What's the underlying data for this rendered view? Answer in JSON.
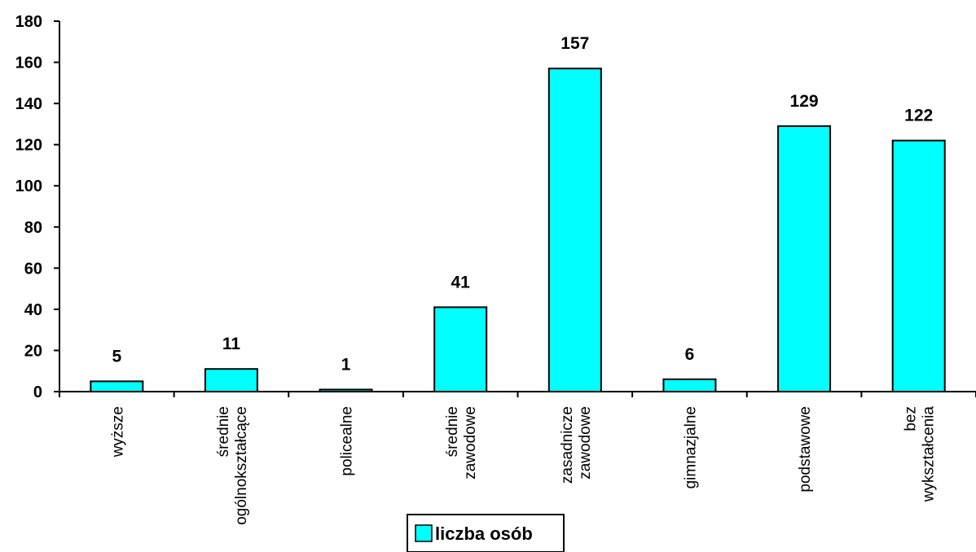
{
  "chart_data": {
    "type": "bar",
    "categories": [
      [
        "wyższe"
      ],
      [
        "średnie",
        "ogólnokształcące"
      ],
      [
        "policealne"
      ],
      [
        "średnie",
        "zawodowe"
      ],
      [
        "zasadnicze",
        "zawodowe"
      ],
      [
        "gimnazjalne"
      ],
      [
        "podstawowe"
      ],
      [
        "bez",
        "wykształcenia"
      ]
    ],
    "series": [
      {
        "name": "liczba osób",
        "values": [
          5,
          11,
          1,
          41,
          157,
          6,
          129,
          122
        ]
      }
    ],
    "ylim": [
      0,
      180
    ],
    "yticks": [
      0,
      20,
      40,
      60,
      80,
      100,
      120,
      140,
      160,
      180
    ],
    "grid": false,
    "legend_position": "bottom-center",
    "colors": {
      "bar_fill": "#00FFFF",
      "bar_stroke": "#000000",
      "axis": "#000000"
    }
  }
}
